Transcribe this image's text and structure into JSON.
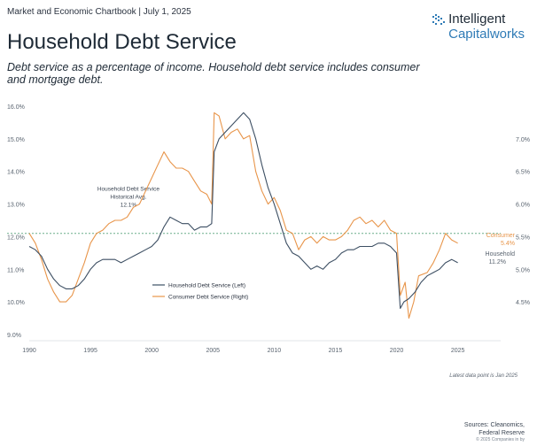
{
  "header": {
    "topline": "Market and Economic Chartbook | July 1, 2025",
    "title": "Household Debt Service",
    "subtitle": "Debt service as a percentage of income. Household debt service includes consumer and mortgage debt."
  },
  "logo": {
    "line1": "Intelligent",
    "line2": "Capitalworks",
    "icon": "flame-bars-icon",
    "color": "#2f7bb6"
  },
  "footer": {
    "note": "Latest data point is Jan 2025",
    "sources_line1": "Sources: Cleanomics,",
    "sources_line2": "Federal Reserve",
    "copyright": "© 2025 Companies in by"
  },
  "chart_data": {
    "type": "line",
    "x_ticks": [
      1990,
      1995,
      2000,
      2005,
      2010,
      2015,
      2020,
      2025
    ],
    "xlim": [
      1990,
      2028.5
    ],
    "left_axis": {
      "ylim": [
        9.0,
        16.0
      ],
      "ticks": [
        "9.0%",
        "10.0%",
        "11.0%",
        "12.0%",
        "13.0%",
        "14.0%",
        "15.0%",
        "16.0%"
      ],
      "tick_values": [
        9,
        10,
        11,
        12,
        13,
        14,
        15,
        16
      ]
    },
    "right_axis": {
      "ylim": [
        4.0,
        7.5
      ],
      "ticks": [
        "4.5%",
        "5.0%",
        "5.5%",
        "6.0%",
        "6.5%",
        "7.0%"
      ],
      "tick_values": [
        4.5,
        5.0,
        5.5,
        6.0,
        6.5,
        7.0
      ]
    },
    "reference_line": {
      "value": 12.1,
      "axis": "left",
      "label_line1": "Household Debt Service",
      "label_line2": "Historical Avg.",
      "label_line3": "12.1%",
      "color": "#6cae8c"
    },
    "series": [
      {
        "name": "Household Debt Service (Left)",
        "axis": "left",
        "color": "#3d4f63",
        "end_label_line1": "Household",
        "end_label_line2": "11.2%",
        "points": [
          [
            1990,
            11.7
          ],
          [
            1990.5,
            11.6
          ],
          [
            1991,
            11.4
          ],
          [
            1991.5,
            11.0
          ],
          [
            1992,
            10.7
          ],
          [
            1992.5,
            10.5
          ],
          [
            1993,
            10.4
          ],
          [
            1993.5,
            10.4
          ],
          [
            1994,
            10.5
          ],
          [
            1994.5,
            10.7
          ],
          [
            1995,
            11.0
          ],
          [
            1995.5,
            11.2
          ],
          [
            1996,
            11.3
          ],
          [
            1996.5,
            11.3
          ],
          [
            1997,
            11.3
          ],
          [
            1997.5,
            11.2
          ],
          [
            1998,
            11.3
          ],
          [
            1998.5,
            11.4
          ],
          [
            1999,
            11.5
          ],
          [
            1999.5,
            11.6
          ],
          [
            2000,
            11.7
          ],
          [
            2000.5,
            11.9
          ],
          [
            2001,
            12.3
          ],
          [
            2001.5,
            12.6
          ],
          [
            2002,
            12.5
          ],
          [
            2002.5,
            12.4
          ],
          [
            2003,
            12.4
          ],
          [
            2003.5,
            12.2
          ],
          [
            2004,
            12.3
          ],
          [
            2004.5,
            12.3
          ],
          [
            2004.9,
            12.4
          ],
          [
            2005.1,
            14.6
          ],
          [
            2005.5,
            15.0
          ],
          [
            2006,
            15.2
          ],
          [
            2006.5,
            15.4
          ],
          [
            2007,
            15.6
          ],
          [
            2007.5,
            15.8
          ],
          [
            2008,
            15.6
          ],
          [
            2008.5,
            15.0
          ],
          [
            2009,
            14.2
          ],
          [
            2009.5,
            13.5
          ],
          [
            2010,
            13.0
          ],
          [
            2010.5,
            12.4
          ],
          [
            2011,
            11.8
          ],
          [
            2011.5,
            11.5
          ],
          [
            2012,
            11.4
          ],
          [
            2012.5,
            11.2
          ],
          [
            2013,
            11.0
          ],
          [
            2013.5,
            11.1
          ],
          [
            2014,
            11.0
          ],
          [
            2014.5,
            11.2
          ],
          [
            2015,
            11.3
          ],
          [
            2015.5,
            11.5
          ],
          [
            2016,
            11.6
          ],
          [
            2016.5,
            11.6
          ],
          [
            2017,
            11.7
          ],
          [
            2017.5,
            11.7
          ],
          [
            2018,
            11.7
          ],
          [
            2018.5,
            11.8
          ],
          [
            2019,
            11.8
          ],
          [
            2019.5,
            11.7
          ],
          [
            2020,
            11.5
          ],
          [
            2020.3,
            9.8
          ],
          [
            2020.6,
            10.0
          ],
          [
            2021,
            10.1
          ],
          [
            2021.5,
            10.3
          ],
          [
            2022,
            10.6
          ],
          [
            2022.5,
            10.8
          ],
          [
            2023,
            10.9
          ],
          [
            2023.5,
            11.0
          ],
          [
            2024,
            11.2
          ],
          [
            2024.5,
            11.3
          ],
          [
            2025,
            11.2
          ]
        ]
      },
      {
        "name": "Consumer Debt Service (Right)",
        "axis": "right",
        "color": "#e8954a",
        "end_label_line1": "Consumer",
        "end_label_line2": "5.4%",
        "points": [
          [
            1990,
            5.55
          ],
          [
            1990.5,
            5.4
          ],
          [
            1991,
            5.15
          ],
          [
            1991.5,
            4.85
          ],
          [
            1992,
            4.65
          ],
          [
            1992.5,
            4.5
          ],
          [
            1993,
            4.5
          ],
          [
            1993.5,
            4.6
          ],
          [
            1994,
            4.85
          ],
          [
            1994.5,
            5.1
          ],
          [
            1995,
            5.4
          ],
          [
            1995.5,
            5.55
          ],
          [
            1996,
            5.6
          ],
          [
            1996.5,
            5.7
          ],
          [
            1997,
            5.75
          ],
          [
            1997.5,
            5.75
          ],
          [
            1998,
            5.8
          ],
          [
            1998.5,
            5.95
          ],
          [
            1999,
            6.0
          ],
          [
            1999.5,
            6.2
          ],
          [
            2000,
            6.4
          ],
          [
            2000.5,
            6.6
          ],
          [
            2001,
            6.8
          ],
          [
            2001.5,
            6.65
          ],
          [
            2002,
            6.55
          ],
          [
            2002.5,
            6.55
          ],
          [
            2003,
            6.5
          ],
          [
            2003.5,
            6.35
          ],
          [
            2004,
            6.2
          ],
          [
            2004.5,
            6.15
          ],
          [
            2004.9,
            6.0
          ],
          [
            2005.1,
            7.4
          ],
          [
            2005.5,
            7.35
          ],
          [
            2006,
            7.0
          ],
          [
            2006.5,
            7.1
          ],
          [
            2007,
            7.15
          ],
          [
            2007.5,
            7.0
          ],
          [
            2008,
            7.05
          ],
          [
            2008.5,
            6.5
          ],
          [
            2009,
            6.2
          ],
          [
            2009.5,
            6.0
          ],
          [
            2010,
            6.1
          ],
          [
            2010.5,
            5.9
          ],
          [
            2011,
            5.6
          ],
          [
            2011.5,
            5.55
          ],
          [
            2012,
            5.3
          ],
          [
            2012.5,
            5.45
          ],
          [
            2013,
            5.5
          ],
          [
            2013.5,
            5.4
          ],
          [
            2014,
            5.5
          ],
          [
            2014.5,
            5.45
          ],
          [
            2015,
            5.45
          ],
          [
            2015.5,
            5.5
          ],
          [
            2016,
            5.6
          ],
          [
            2016.5,
            5.75
          ],
          [
            2017,
            5.8
          ],
          [
            2017.5,
            5.7
          ],
          [
            2018,
            5.75
          ],
          [
            2018.5,
            5.65
          ],
          [
            2019,
            5.75
          ],
          [
            2019.5,
            5.6
          ],
          [
            2020,
            5.55
          ],
          [
            2020.3,
            4.6
          ],
          [
            2020.7,
            4.8
          ],
          [
            2021,
            4.25
          ],
          [
            2021.4,
            4.5
          ],
          [
            2021.8,
            4.9
          ],
          [
            2022.5,
            4.95
          ],
          [
            2023,
            5.1
          ],
          [
            2023.5,
            5.3
          ],
          [
            2024,
            5.55
          ],
          [
            2024.5,
            5.45
          ],
          [
            2025,
            5.4
          ]
        ]
      }
    ]
  }
}
